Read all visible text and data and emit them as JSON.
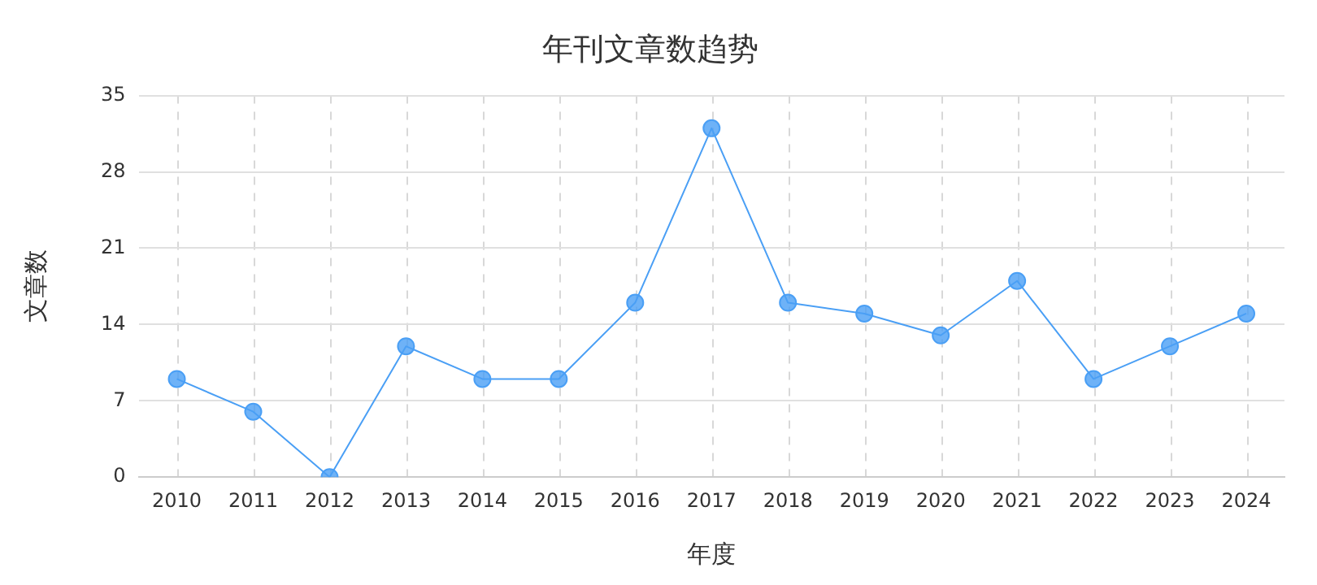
{
  "chart_data": {
    "type": "line",
    "title": "年刊文章数趋势",
    "xlabel": "年度",
    "ylabel": "文章数",
    "categories": [
      "2010",
      "2011",
      "2012",
      "2013",
      "2014",
      "2015",
      "2016",
      "2017",
      "2018",
      "2019",
      "2020",
      "2021",
      "2022",
      "2023",
      "2024"
    ],
    "series": [
      {
        "color": "#4a9ff5",
        "values": [
          9,
          6,
          0,
          12,
          9,
          9,
          16,
          32,
          16,
          15,
          13,
          18,
          9,
          12,
          15
        ]
      }
    ],
    "ylim": [
      0,
      35
    ],
    "yticks": [
      0,
      7,
      14,
      21,
      28,
      35
    ],
    "grid": true,
    "legend": false,
    "marker": "circle",
    "line_style": "solid"
  }
}
